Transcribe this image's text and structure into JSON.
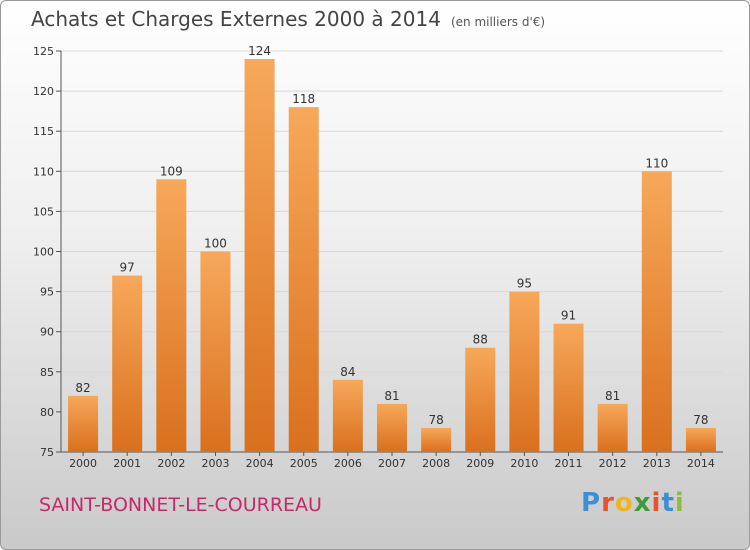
{
  "header": {
    "title": "Achats et Charges Externes 2000 à 2014",
    "unit": "(en milliers d'€)"
  },
  "footer": {
    "town": "SAINT-BONNET-LE-COURREAU",
    "logo_letters": [
      "P",
      "r",
      "o",
      "x",
      "i",
      "t",
      "i"
    ],
    "logo_colors": [
      "#3b8fd6",
      "#e8522b",
      "#f2b41e",
      "#3f9a3a",
      "#e8522b",
      "#3b8fd6",
      "#8fbf3a"
    ]
  },
  "colors": {
    "bar_light": "#f7a85a",
    "bar_dark": "#d9701e",
    "town": "#c8286b"
  },
  "chart_data": {
    "type": "bar",
    "title": "Achats et Charges Externes 2000 à 2014",
    "categories": [
      "2000",
      "2001",
      "2002",
      "2003",
      "2004",
      "2005",
      "2006",
      "2007",
      "2008",
      "2009",
      "2010",
      "2011",
      "2012",
      "2013",
      "2014"
    ],
    "values": [
      82,
      97,
      109,
      100,
      124,
      118,
      84,
      81,
      78,
      88,
      95,
      91,
      81,
      110,
      78
    ],
    "ylim": [
      75,
      125
    ],
    "yticks": [
      75,
      80,
      85,
      90,
      95,
      100,
      105,
      110,
      115,
      120,
      125
    ],
    "grid": true,
    "xlabel": "",
    "ylabel": ""
  }
}
